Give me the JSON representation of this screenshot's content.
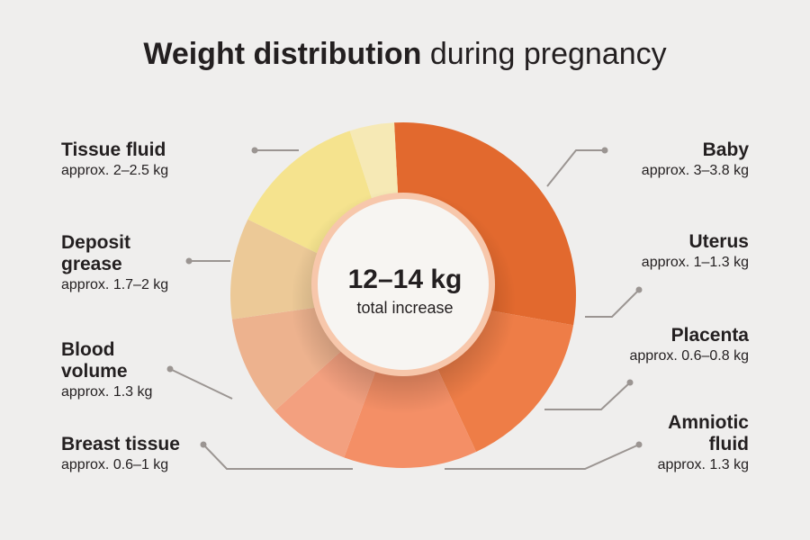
{
  "title": {
    "bold": "Weight distribution",
    "rest": " during pregnancy"
  },
  "center": {
    "value": "12–14 kg",
    "caption": "total increase"
  },
  "chart_data": {
    "type": "pie",
    "title": "Weight distribution during pregnancy",
    "slices": [
      {
        "name": "Baby",
        "amount": "approx. 3–3.8 kg",
        "range_kg": [
          3,
          3.8
        ],
        "color": "#e2692e"
      },
      {
        "name": "Uterus",
        "amount": "approx. 1–1.3 kg",
        "range_kg": [
          1,
          1.3
        ],
        "color": "#ee7d47"
      },
      {
        "name": "Placenta",
        "amount": "approx. 0.6–0.8 kg",
        "range_kg": [
          0.6,
          0.8
        ],
        "color": "#f48f66"
      },
      {
        "name": "Amniotic fluid",
        "amount": "approx. 1.3 kg",
        "range_kg": [
          1.3,
          1.3
        ],
        "color": "#f3a07f"
      },
      {
        "name": "Breast tissue",
        "amount": "approx. 0.6–1 kg",
        "range_kg": [
          0.6,
          1
        ],
        "color": "#edb28e"
      },
      {
        "name": "Blood volume",
        "amount": "approx. 1.3 kg",
        "range_kg": [
          1.3,
          1.3
        ],
        "color": "#ecc997"
      },
      {
        "name": "Deposit grease",
        "amount": "approx. 1.7–2 kg",
        "range_kg": [
          1.7,
          2
        ],
        "color": "#f5e38e"
      },
      {
        "name": "Tissue fluid",
        "amount": "approx. 2–2.5 kg",
        "range_kg": [
          2,
          2.5
        ],
        "color": "#f6e9b5"
      }
    ],
    "total": "12–14 kg"
  },
  "labels": {
    "baby": {
      "line1": "Baby",
      "amount": "approx. 3–3.8 kg"
    },
    "uterus": {
      "line1": "Uterus",
      "amount": "approx. 1–1.3 kg"
    },
    "placenta": {
      "line1": "Placenta",
      "amount": "approx. 0.6–0.8 kg"
    },
    "amniotic": {
      "line1": "Amniotic",
      "line2": "fluid",
      "amount": "approx. 1.3 kg"
    },
    "tissue": {
      "line1": "Tissue fluid",
      "amount": "approx. 2–2.5 kg"
    },
    "deposit": {
      "line1": "Deposit",
      "line2": "grease",
      "amount": "approx. 1.7–2 kg"
    },
    "blood": {
      "line1": "Blood",
      "line2": "volume",
      "amount": "approx. 1.3 kg"
    },
    "breast": {
      "line1": "Breast tissue",
      "amount": "approx. 0.6–1 kg"
    }
  },
  "leader_color": "#9b9592",
  "ring_color": "#f7c7ab"
}
